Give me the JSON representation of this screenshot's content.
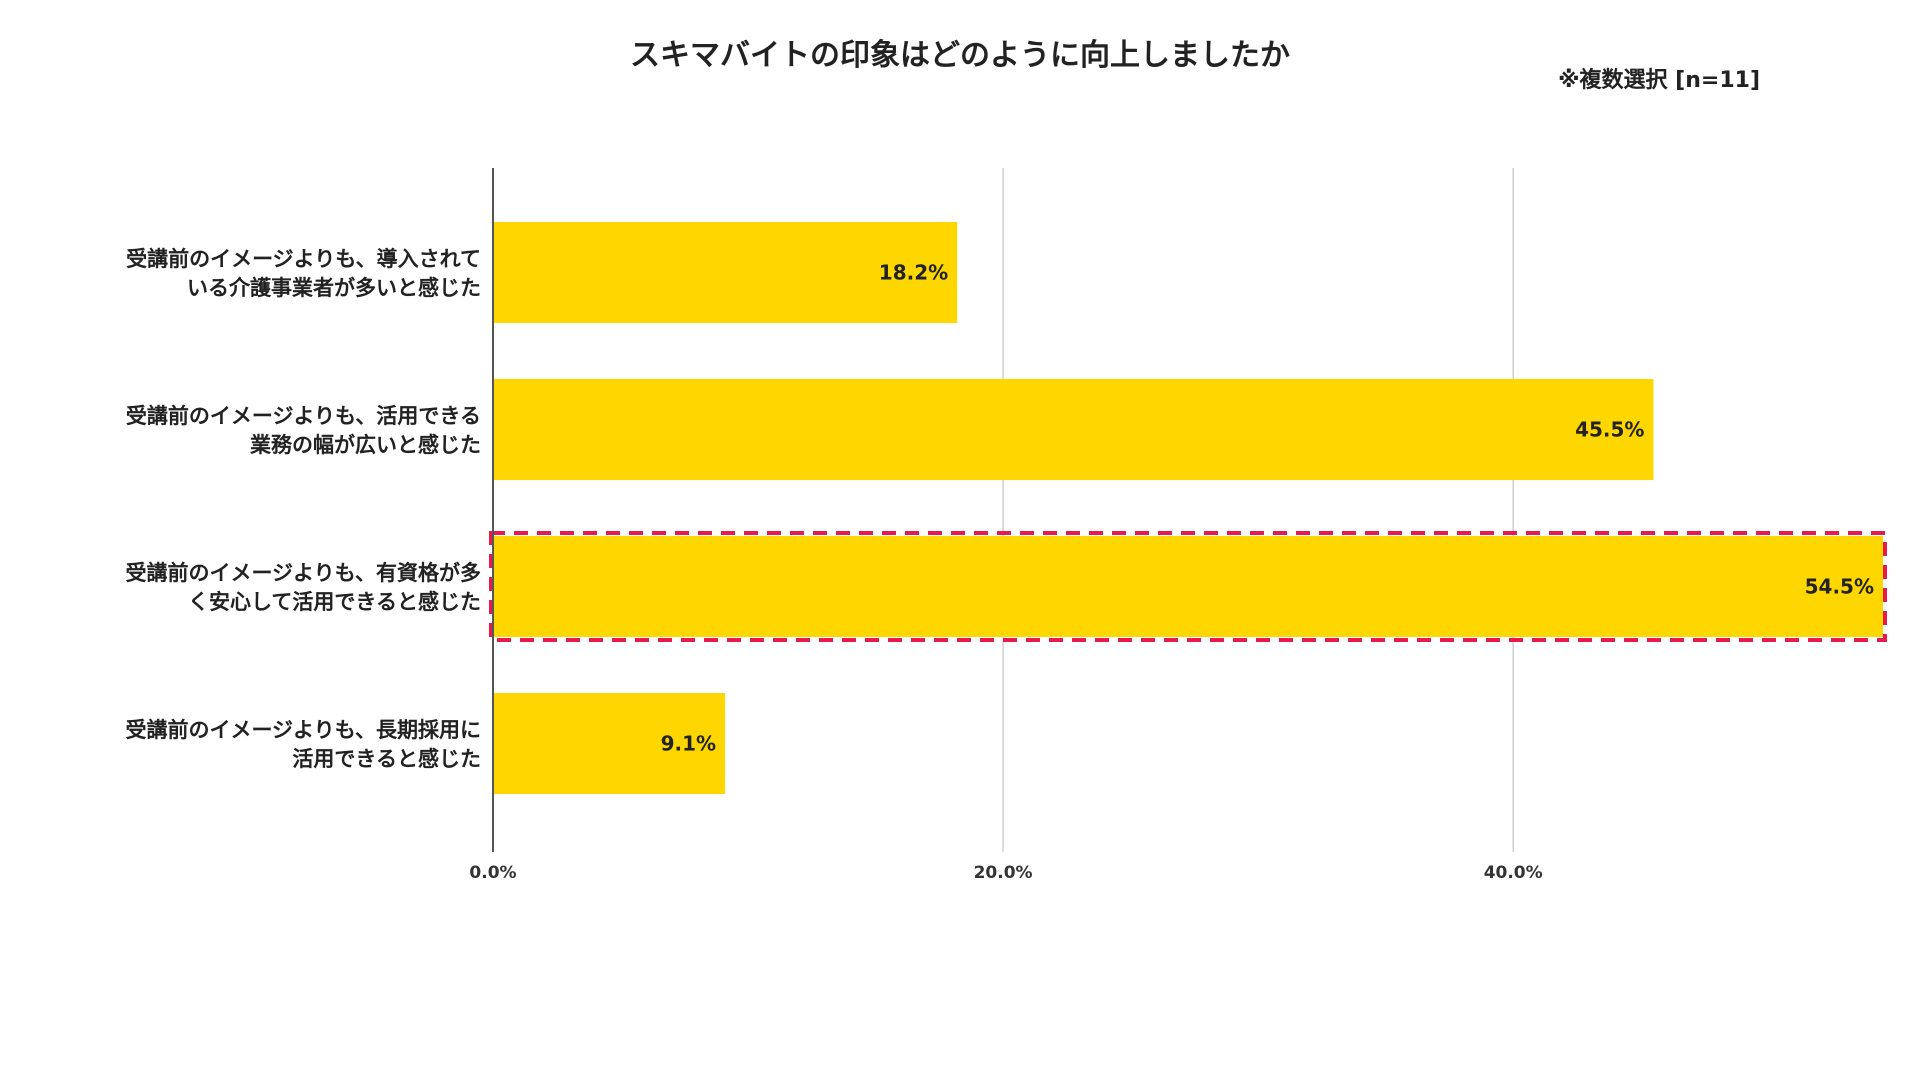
{
  "chart_data": {
    "type": "bar",
    "orientation": "horizontal",
    "title": "スキマバイトの印象はどのように向上しましたか",
    "subtitle": "※複数選択 [n=11]",
    "categories": [
      [
        "受講前のイメージよりも、導入されて",
        "いる介護事業者が多いと感じた"
      ],
      [
        "受講前のイメージよりも、活用できる",
        "業務の幅が広いと感じた"
      ],
      [
        "受講前のイメージよりも、有資格が多",
        "く安心して活用できると感じた"
      ],
      [
        "受講前のイメージよりも、長期採用に",
        "活用できると感じた"
      ]
    ],
    "values": [
      18.2,
      45.5,
      54.5,
      9.1
    ],
    "value_labels": [
      "18.2%",
      "45.5%",
      "54.5%",
      "9.1%"
    ],
    "x_ticks": [
      0,
      20,
      40
    ],
    "x_tick_labels": [
      "0.0%",
      "20.0%",
      "40.0%"
    ],
    "xlim": [
      0,
      54.5
    ],
    "grid": true,
    "highlighted_index": 2,
    "colors": {
      "bar": "#FFD700",
      "grid": "#d0d0d0",
      "axis": "#555555",
      "highlight_border": "#e8194b"
    }
  }
}
